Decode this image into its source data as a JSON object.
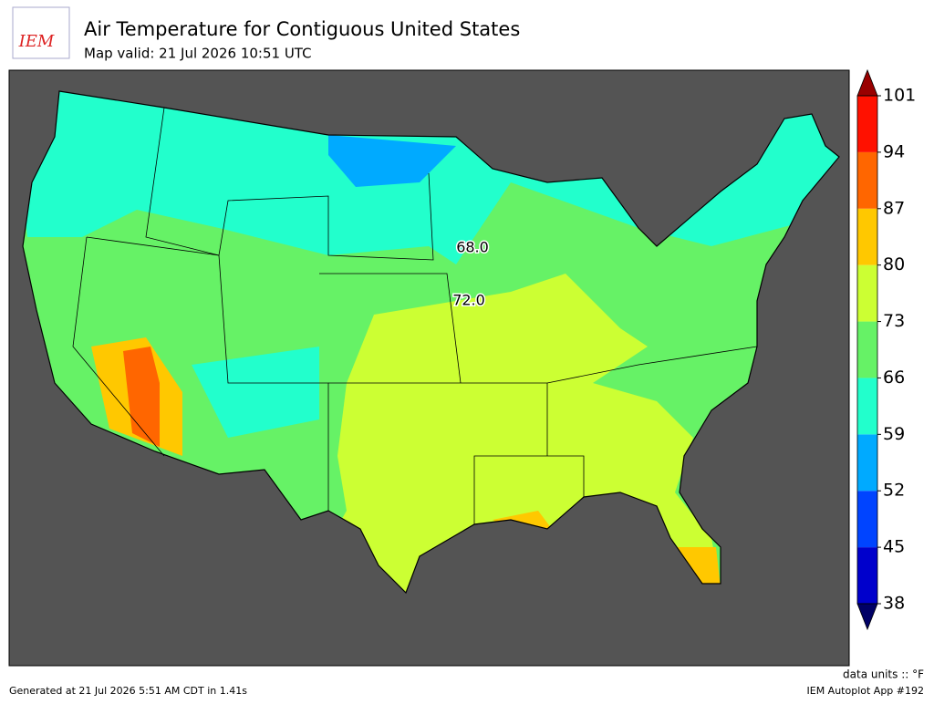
{
  "header": {
    "logo": "IEM",
    "title": "Air Temperature for Contiguous United States",
    "subtitle": "Map valid: 21 Jul 2026 10:51 UTC"
  },
  "contour_labels": [
    "68.0",
    "72.0"
  ],
  "colorbar": {
    "ticks": [
      38,
      45,
      52,
      59,
      66,
      73,
      80,
      87,
      94,
      101
    ],
    "colors": [
      "#0000cc",
      "#0044ff",
      "#00aaff",
      "#22ffcc",
      "#66f266",
      "#ccff33",
      "#ffc800",
      "#ff6600",
      "#ff1100"
    ],
    "under_color": "#000066",
    "over_color": "#990000",
    "units": "data units :: °F"
  },
  "footer": {
    "left": "Generated at 21 Jul 2026 5:51 AM CDT in 1.41s",
    "right": "IEM Autoplot App #192"
  }
}
